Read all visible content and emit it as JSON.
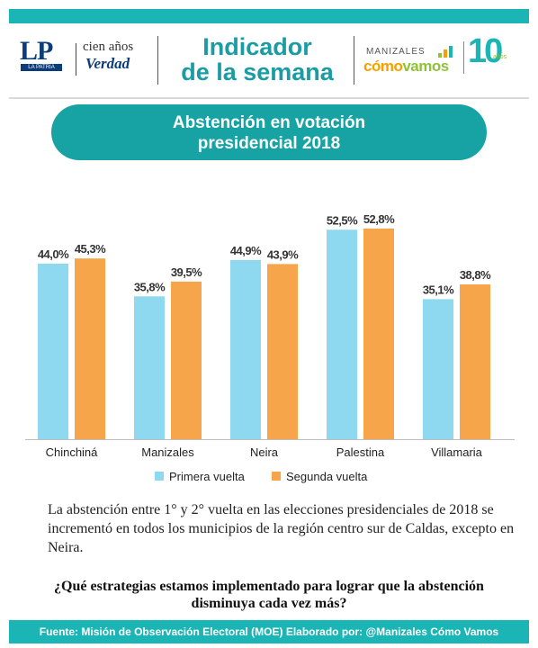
{
  "header": {
    "lp_letters": "LP",
    "lp_sub": "LA PATRIA",
    "cien": "cien años",
    "verdad": "Verdad",
    "headline_line1": "Indicador",
    "headline_line2": "de la semana",
    "mcv_small": "MANIZALES",
    "mcv_como": "cómo",
    "mcv_vamos": "vamos",
    "ten": "10",
    "ten_sub": "años"
  },
  "banner": {
    "line1": "Abstención en votación",
    "line2": "presidencial 2018"
  },
  "chart_data": {
    "type": "bar",
    "categories": [
      "Chinchiná",
      "Manizales",
      "Neira",
      "Palestina",
      "Villamaria"
    ],
    "series": [
      {
        "name": "Primera vuelta",
        "values": [
          44.0,
          35.8,
          44.9,
          52.5,
          35.1
        ],
        "labels": [
          "44,0%",
          "35,8%",
          "44,9%",
          "52,5%",
          "35,1%"
        ],
        "color": "#8ed8f0"
      },
      {
        "name": "Segunda vuelta",
        "values": [
          45.3,
          39.5,
          43.9,
          52.8,
          38.8
        ],
        "labels": [
          "45,3%",
          "39,5%",
          "43,9%",
          "52,8%",
          "38,8%"
        ],
        "color": "#f6a54a"
      }
    ],
    "ylim": [
      0,
      60
    ],
    "grid": false,
    "legend_position": "bottom"
  },
  "text": {
    "paragraph": "La abstención entre 1° y 2° vuelta en las elecciones presidenciales de 2018 se incrementó en todos los municipios de la región centro sur de Caldas, excepto en Neira.",
    "question": "¿Qué estrategias estamos implementado para lograr que la abstención disminuya cada vez más?"
  },
  "footer": {
    "text": "Fuente: Misión de Observación Electoral (MOE) Elaborado por: @Manizales Cómo Vamos"
  },
  "colors": {
    "teal": "#1bb5b5",
    "banner": "#17a3a3",
    "headline": "#1a9ca5",
    "navy": "#0d3c7a",
    "green": "#8fc23a",
    "orange": "#f6a000"
  }
}
